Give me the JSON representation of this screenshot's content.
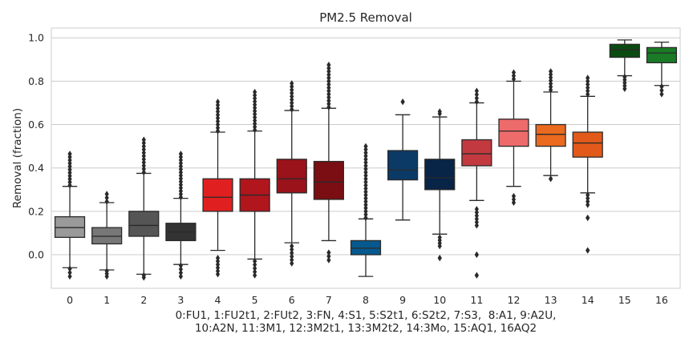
{
  "chart_data": {
    "type": "box",
    "title": "PM2.5 Removal",
    "ylabel": "Removal (fraction)",
    "xlabel_lines": [
      "0:FU1, 1:FU2t1, 2:FUt2, 3:FN, 4:S1, 5:S2t1, 6:S2t2, 7:S3,  8:A1, 9:A2U,",
      "10:A2N, 11:3M1, 12:3M2t1, 13:3M2t2, 14:3Mo, 15:AQ1, 16AQ2"
    ],
    "ylim": [
      -0.155,
      1.045
    ],
    "yticks": [
      "0.0",
      "0.2",
      "0.4",
      "0.6",
      "0.8",
      "1.0"
    ],
    "grid": true,
    "categories": [
      "0",
      "1",
      "2",
      "3",
      "4",
      "5",
      "6",
      "7",
      "8",
      "9",
      "10",
      "11",
      "12",
      "13",
      "14",
      "15",
      "16"
    ],
    "boxes": [
      {
        "q1": 0.08,
        "median": 0.125,
        "q3": 0.175,
        "whislo": -0.06,
        "whishi": 0.315,
        "color": "#9a9a9a",
        "fliers_low": [
          -0.065,
          -0.1
        ],
        "fliers_high": [
          0.32,
          0.465
        ]
      },
      {
        "q1": 0.05,
        "median": 0.085,
        "q3": 0.125,
        "whislo": -0.07,
        "whishi": 0.24,
        "color": "#777777",
        "fliers_low": [
          -0.075,
          -0.1
        ],
        "fliers_high": [
          0.245,
          0.28
        ]
      },
      {
        "q1": 0.085,
        "median": 0.135,
        "q3": 0.2,
        "whislo": -0.09,
        "whishi": 0.375,
        "color": "#555555",
        "fliers_low": [
          -0.095,
          -0.105
        ],
        "fliers_high": [
          0.38,
          0.53
        ]
      },
      {
        "q1": 0.065,
        "median": 0.105,
        "q3": 0.145,
        "whislo": -0.045,
        "whishi": 0.26,
        "color": "#333333",
        "fliers_low": [
          -0.05,
          -0.1
        ],
        "fliers_high": [
          0.265,
          0.465
        ]
      },
      {
        "q1": 0.2,
        "median": 0.265,
        "q3": 0.35,
        "whislo": 0.02,
        "whishi": 0.565,
        "color": "#e02020",
        "fliers_low": [
          -0.015,
          -0.09
        ],
        "fliers_high": [
          0.57,
          0.705
        ]
      },
      {
        "q1": 0.2,
        "median": 0.275,
        "q3": 0.35,
        "whislo": -0.02,
        "whishi": 0.57,
        "color": "#b0161c",
        "fliers_low": [
          -0.03,
          -0.095
        ],
        "fliers_high": [
          0.575,
          0.75
        ]
      },
      {
        "q1": 0.285,
        "median": 0.35,
        "q3": 0.44,
        "whislo": 0.055,
        "whishi": 0.665,
        "color": "#9a121a",
        "fliers_low": [
          0.04,
          -0.04
        ],
        "fliers_high": [
          0.67,
          0.79
        ]
      },
      {
        "q1": 0.255,
        "median": 0.335,
        "q3": 0.43,
        "whislo": 0.065,
        "whishi": 0.675,
        "color": "#7a0e12",
        "fliers_low": [
          0.01,
          -0.025
        ],
        "fliers_high": [
          0.68,
          0.875
        ]
      },
      {
        "q1": 0.0,
        "median": 0.03,
        "q3": 0.065,
        "whislo": -0.1,
        "whishi": 0.165,
        "color": "#06598f",
        "fliers_low": [],
        "fliers_high": [
          0.17,
          0.365,
          0.5
        ]
      },
      {
        "q1": 0.345,
        "median": 0.39,
        "q3": 0.48,
        "whislo": 0.16,
        "whishi": 0.645,
        "color": "#0b3a66",
        "fliers_low": [],
        "fliers_high": [
          0.705
        ]
      },
      {
        "q1": 0.3,
        "median": 0.355,
        "q3": 0.44,
        "whislo": 0.095,
        "whishi": 0.635,
        "color": "#082447",
        "fliers_low": [
          0.08,
          0.04,
          -0.015
        ],
        "fliers_high": [
          0.65,
          0.66
        ]
      },
      {
        "q1": 0.41,
        "median": 0.465,
        "q3": 0.53,
        "whislo": 0.25,
        "whishi": 0.7,
        "color": "#c23a40",
        "fliers_low": [
          0.21,
          0.135,
          0.0,
          -0.095
        ],
        "fliers_high": [
          0.705,
          0.755
        ]
      },
      {
        "q1": 0.5,
        "median": 0.57,
        "q3": 0.625,
        "whislo": 0.315,
        "whishi": 0.8,
        "color": "#ee6b6b",
        "fliers_low": [
          0.27,
          0.24
        ],
        "fliers_high": [
          0.81,
          0.84
        ]
      },
      {
        "q1": 0.5,
        "median": 0.555,
        "q3": 0.6,
        "whislo": 0.365,
        "whishi": 0.75,
        "color": "#ea6a1f",
        "fliers_low": [
          0.35
        ],
        "fliers_high": [
          0.76,
          0.845
        ]
      },
      {
        "q1": 0.45,
        "median": 0.515,
        "q3": 0.565,
        "whislo": 0.285,
        "whishi": 0.73,
        "color": "#e25a1a",
        "fliers_low": [
          0.275,
          0.23,
          0.17,
          0.02
        ],
        "fliers_high": [
          0.74,
          0.815
        ]
      },
      {
        "q1": 0.91,
        "median": 0.945,
        "q3": 0.97,
        "whislo": 0.825,
        "whishi": 0.99,
        "color": "#0b4a10",
        "fliers_low": [
          0.82,
          0.765
        ],
        "fliers_high": []
      },
      {
        "q1": 0.885,
        "median": 0.93,
        "q3": 0.955,
        "whislo": 0.78,
        "whishi": 0.98,
        "color": "#1a7a26",
        "fliers_low": [
          0.775,
          0.74
        ],
        "fliers_high": []
      }
    ]
  }
}
